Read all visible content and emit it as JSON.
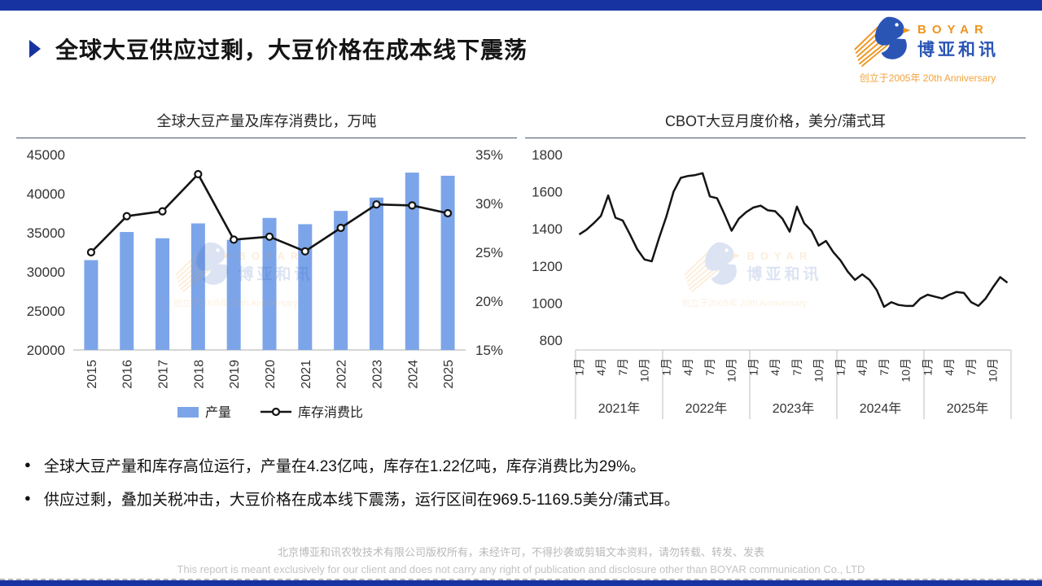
{
  "header": {
    "title": "全球大豆供应过剩，大豆价格在成本线下震荡"
  },
  "logo": {
    "brand_en": "BOYAR",
    "brand_cn": "博亚和讯",
    "tagline": "创立于2005年 20th Anniversary"
  },
  "chart_data": [
    {
      "type": "bar",
      "title": "全球大豆产量及库存消费比，万吨",
      "categories": [
        "2015",
        "2016",
        "2017",
        "2018",
        "2019",
        "2020",
        "2021",
        "2022",
        "2023",
        "2024",
        "2025"
      ],
      "series": [
        {
          "name": "产量",
          "type": "bar",
          "axis": "left",
          "values": [
            31500,
            35100,
            34300,
            36200,
            34100,
            36900,
            36100,
            37800,
            39500,
            42700,
            42300
          ]
        },
        {
          "name": "库存消费比",
          "type": "line",
          "axis": "right",
          "values": [
            25.0,
            28.7,
            29.2,
            33.0,
            26.3,
            26.6,
            25.1,
            27.5,
            29.9,
            29.8,
            29.0
          ]
        }
      ],
      "left_axis": {
        "min": 20000,
        "max": 45000,
        "step": 5000,
        "ticks": [
          "45000",
          "40000",
          "35000",
          "30000",
          "25000",
          "20000"
        ]
      },
      "right_axis": {
        "min": 15,
        "max": 35,
        "step": 5,
        "ticks": [
          "35%",
          "30%",
          "25%",
          "20%",
          "15%"
        ]
      },
      "legend_position": "bottom",
      "grid": false
    },
    {
      "type": "line",
      "title": "CBOT大豆月度价格，美分/蒲式耳",
      "y_axis": {
        "min": 800,
        "max": 1800,
        "step": 200,
        "ticks": [
          "1800",
          "1600",
          "1400",
          "1200",
          "1000",
          "800"
        ]
      },
      "years": [
        "2021年",
        "2022年",
        "2023年",
        "2024年",
        "2025年"
      ],
      "month_ticks": [
        "1月",
        "4月",
        "7月",
        "10月"
      ],
      "values": [
        1370,
        1395,
        1430,
        1470,
        1580,
        1460,
        1445,
        1370,
        1290,
        1235,
        1225,
        1350,
        1465,
        1600,
        1675,
        1685,
        1690,
        1700,
        1575,
        1565,
        1480,
        1390,
        1455,
        1490,
        1515,
        1525,
        1500,
        1495,
        1455,
        1385,
        1520,
        1430,
        1390,
        1310,
        1335,
        1275,
        1230,
        1170,
        1125,
        1155,
        1125,
        1070,
        980,
        1005,
        990,
        985,
        985,
        1025,
        1045,
        1035,
        1025,
        1045,
        1060,
        1055,
        1005,
        985,
        1025,
        1085,
        1140,
        1110
      ],
      "grid": false,
      "legend_position": "none"
    }
  ],
  "bullets": [
    "全球大豆产量和库存高位运行，产量在4.23亿吨，库存在1.22亿吨，库存消费比为29%。",
    "供应过剩，叠加关税冲击，大豆价格在成本线下震荡，运行区间在969.5-1169.5美分/蒲式耳。"
  ],
  "footer": {
    "line_cn": "北京博亚和讯农牧技术有限公司版权所有，未经许可，不得抄袭或剪辑文本资料，请勿转载、转发、发表",
    "line_en": "This report is meant exclusively for our client and does not carry any right of publication and disclosure other than BOYAR communication Co., LTD"
  },
  "colors": {
    "top_bar": "#1733A1",
    "bar_fill": "#7CA5E9",
    "line_stroke": "#141414",
    "logo_blue": "#2B55B5",
    "logo_orange": "#F0941E",
    "axis_text": "#333333",
    "axis_line": "#c9c9c9"
  }
}
